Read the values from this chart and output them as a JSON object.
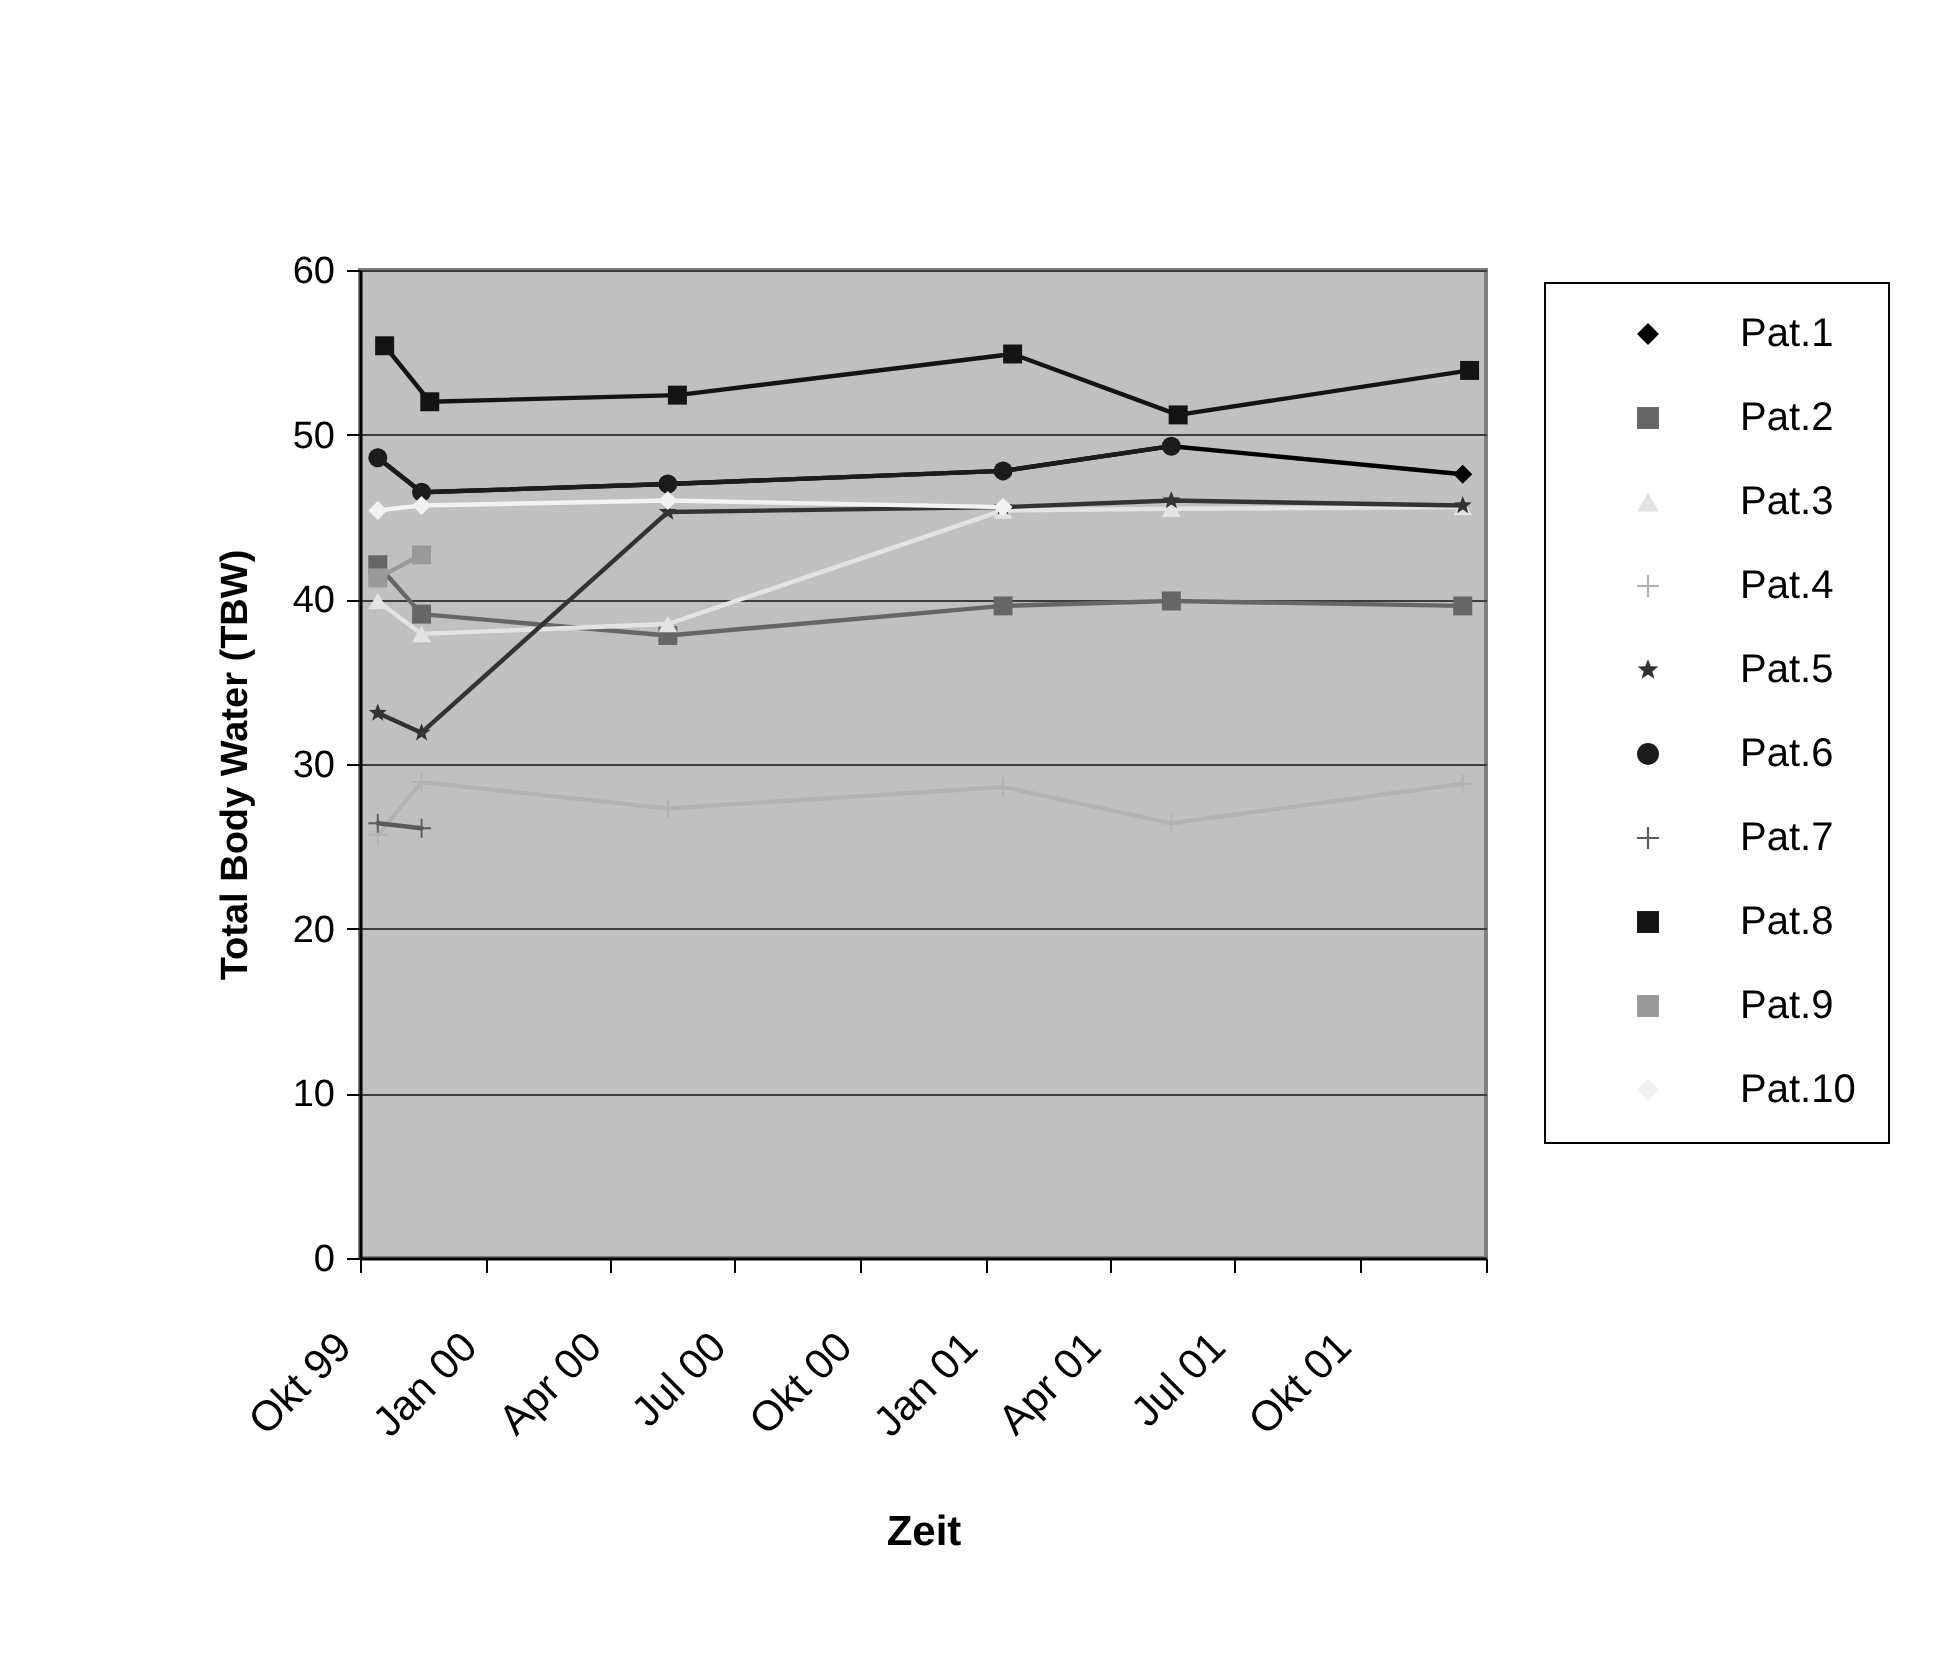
{
  "chart_data": {
    "type": "line",
    "xlabel": "Zeit",
    "ylabel": "Total Body Water (TBW)",
    "x": [
      "1999-10-14",
      "1999-11-15",
      "2000-05-13",
      "2001-01-13",
      "2001-05-16",
      "2001-12-15"
    ],
    "xlim": [
      "1999-10-01",
      "2002-01-01"
    ],
    "xticks": [
      {
        "value": "1999-10-01",
        "label": "Okt 99"
      },
      {
        "value": "2000-01-01",
        "label": "Jan 00"
      },
      {
        "value": "2000-04-01",
        "label": "Apr 00"
      },
      {
        "value": "2000-07-01",
        "label": "Jul 00"
      },
      {
        "value": "2000-10-01",
        "label": "Okt 00"
      },
      {
        "value": "2001-01-01",
        "label": "Jan 01"
      },
      {
        "value": "2001-04-01",
        "label": "Apr 01"
      },
      {
        "value": "2001-07-01",
        "label": "Jul 01"
      },
      {
        "value": "2001-10-01",
        "label": "Okt 01"
      },
      {
        "value": "2002-01-01",
        "label": null
      }
    ],
    "ylim": [
      0,
      60
    ],
    "yticks": [
      0,
      10,
      20,
      30,
      40,
      50,
      60
    ],
    "grid": "y",
    "legend": "right",
    "line_style": "solid",
    "series": [
      {
        "name": "Pat.1",
        "color": "#000000",
        "marker": "diamond",
        "values": [
          48.6,
          46.5,
          47.0,
          47.8,
          49.3,
          47.6
        ]
      },
      {
        "name": "Pat.2",
        "color": "#666666",
        "marker": "square",
        "values": [
          42.1,
          39.1,
          37.8,
          39.6,
          39.9,
          39.6
        ]
      },
      {
        "name": "Pat.3",
        "color": "#e3e3e3",
        "marker": "triangle",
        "values": [
          39.9,
          37.9,
          38.5,
          45.4,
          45.5,
          45.6
        ]
      },
      {
        "name": "Pat.4",
        "color": "#b2b2b2",
        "marker": "cross",
        "values": [
          25.7,
          28.9,
          27.3,
          28.6,
          26.4,
          28.8
        ]
      },
      {
        "name": "Pat.5",
        "color": "#333333",
        "marker": "star",
        "values": [
          33.1,
          31.9,
          45.3,
          45.6,
          46.0,
          45.7
        ]
      },
      {
        "name": "Pat.6",
        "color": "#1c1c1c",
        "marker": "circle",
        "x": [
          "1999-10-14",
          "1999-11-15",
          "2000-05-13",
          "2001-01-13",
          "2001-05-16"
        ],
        "values": [
          48.6,
          46.5,
          47.0,
          47.8,
          49.3
        ]
      },
      {
        "name": "Pat.7",
        "color": "#5a5a5a",
        "marker": "cross",
        "x": [
          "1999-10-14",
          "1999-11-15"
        ],
        "values": [
          26.4,
          26.1
        ]
      },
      {
        "name": "Pat.8",
        "color": "#141414",
        "marker": "square",
        "x": [
          "1999-10-19",
          "1999-11-21",
          "2000-05-20",
          "2001-01-20",
          "2001-05-21",
          "2001-12-20"
        ],
        "values": [
          55.4,
          52.0,
          52.4,
          54.9,
          51.2,
          53.9
        ]
      },
      {
        "name": "Pat.9",
        "color": "#999999",
        "marker": "square",
        "x": [
          "1999-10-14",
          "1999-11-15"
        ],
        "values": [
          41.3,
          42.7
        ]
      },
      {
        "name": "Pat.10",
        "color": "#f2f2f2",
        "marker": "diamond",
        "x": [
          "1999-10-14",
          "1999-11-15",
          "2000-05-13",
          "2001-01-13"
        ],
        "values": [
          45.4,
          45.7,
          46.0,
          45.6
        ]
      }
    ]
  }
}
